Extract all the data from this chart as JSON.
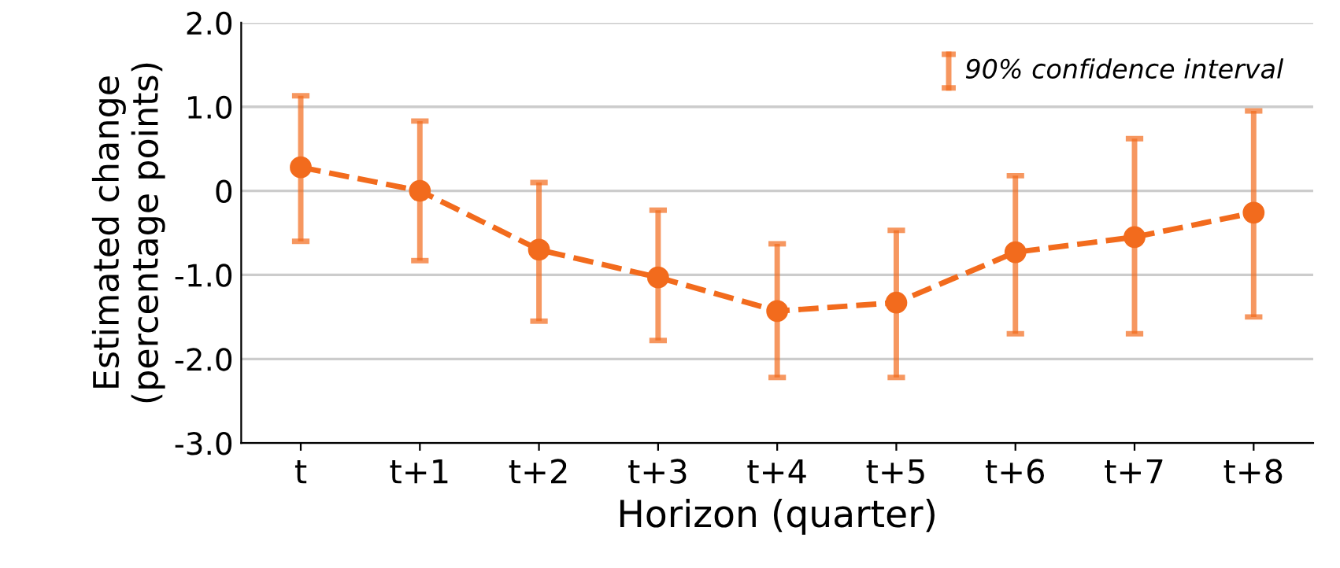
{
  "chart_data": {
    "type": "line",
    "xlabel": "Horizon (quarter)",
    "ylabel": "Estimated change\n(percentage points)",
    "categories": [
      "t",
      "t+1",
      "t+2",
      "t+3",
      "t+4",
      "t+5",
      "t+6",
      "t+7",
      "t+8"
    ],
    "series": [
      {
        "color": "#f26b1d",
        "values": [
          0.28,
          0.0,
          -0.7,
          -1.03,
          -1.43,
          -1.33,
          -0.73,
          -0.55,
          -0.26
        ],
        "errors": [
          [
            -0.6,
            1.13
          ],
          [
            -0.83,
            0.83
          ],
          [
            -1.55,
            0.1
          ],
          [
            -1.78,
            -0.23
          ],
          [
            -2.22,
            -0.63
          ],
          [
            -2.22,
            -0.47
          ],
          [
            -1.7,
            0.18
          ],
          [
            -1.7,
            0.62
          ],
          [
            -1.5,
            0.95
          ]
        ]
      }
    ],
    "ylim": [
      -3.0,
      2.0
    ],
    "yticks": [
      {
        "value": -3,
        "label": "-3.0"
      },
      {
        "value": -2,
        "label": "-2.0"
      },
      {
        "value": -1,
        "label": "-1.0"
      },
      0,
      {
        "value": 1,
        "label": "1.0"
      },
      {
        "value": 2,
        "label": "2.0"
      }
    ],
    "grid": "y",
    "marker": "circle",
    "line_style": "dashed",
    "annotations": [
      "90% confidence interval"
    ]
  }
}
